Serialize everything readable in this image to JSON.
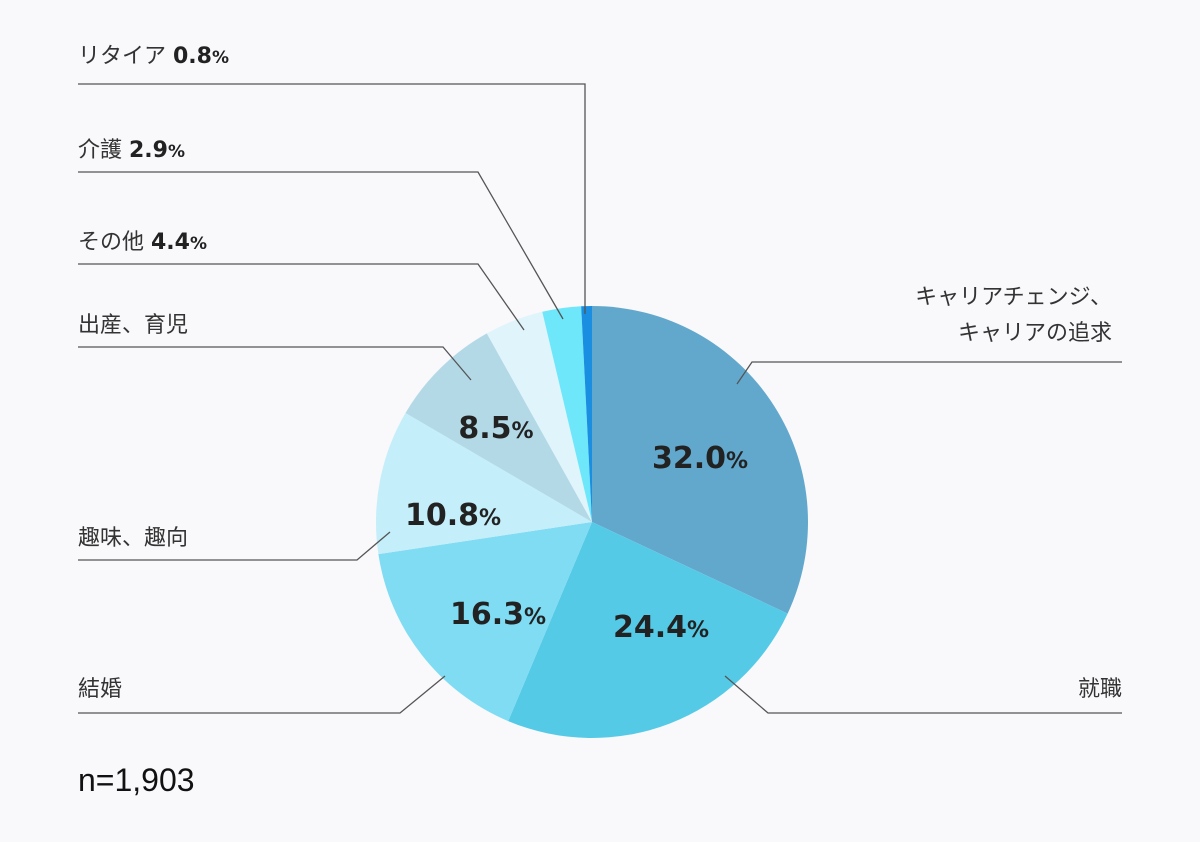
{
  "chart_data": {
    "type": "pie",
    "slices": [
      {
        "label": "キャリアチェンジ、\nキャリアの追求",
        "value": 32.0,
        "value_text": "32.0",
        "color": "#62a8cd"
      },
      {
        "label": "就職",
        "value": 24.4,
        "value_text": "24.4",
        "color": "#55cae6"
      },
      {
        "label": "結婚",
        "value": 16.3,
        "value_text": "16.3",
        "color": "#7fdcf3"
      },
      {
        "label": "趣味、趣向",
        "value": 10.8,
        "value_text": "10.8",
        "color": "#c4eefa"
      },
      {
        "label": "出産、育児",
        "value": 8.5,
        "value_text": "8.5",
        "color": "#b3d9e7"
      },
      {
        "label": "その他",
        "value": 4.4,
        "value_text": "4.4",
        "color": "#dff4fb"
      },
      {
        "label": "介護",
        "value": 2.9,
        "value_text": "2.9",
        "color": "#6ee7fb"
      },
      {
        "label": "リタイア",
        "value": 0.8,
        "value_text": "0.8",
        "color": "#1a8ee0"
      }
    ],
    "percent_sign": "%",
    "sample_size": "n=1,903"
  }
}
